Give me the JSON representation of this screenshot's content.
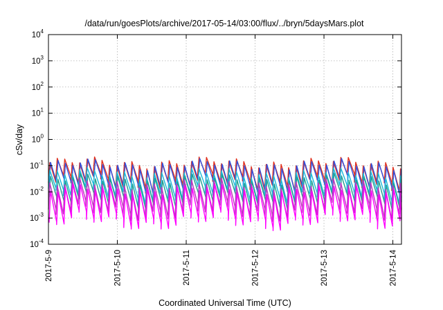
{
  "chart_data": {
    "type": "line",
    "title": "/data/run/goesPlots/archive/2017-05-14/03:00/flux/../bryn/5daysMars.plot",
    "xlabel": "Coordinated Universal Time (UTC)",
    "ylabel": "cSv/day",
    "yscale": "log",
    "ylim": [
      0.0001,
      10000
    ],
    "xlim": [
      "2017-05-09T00:00",
      "2017-05-14T03:00"
    ],
    "grid": true,
    "x_ticks": [
      "2017-5-9",
      "2017-5-10",
      "2017-5-11",
      "2017-5-12",
      "2017-5-13",
      "2017-5-14"
    ],
    "y_ticks": [
      {
        "base": "10",
        "exp": "-4"
      },
      {
        "base": "10",
        "exp": "-3"
      },
      {
        "base": "10",
        "exp": "-2"
      },
      {
        "base": "10",
        "exp": "-1"
      },
      {
        "base": "10",
        "exp": "0"
      },
      {
        "base": "10",
        "exp": "1"
      },
      {
        "base": "10",
        "exp": "2"
      },
      {
        "base": "10",
        "exp": "3"
      },
      {
        "base": "10",
        "exp": "4"
      }
    ],
    "sawtooth_period_hours": 2.6,
    "series": [
      {
        "color": "#e0301e",
        "peak": 0.13,
        "trough": 0.022
      },
      {
        "color": "#3050e0",
        "peak": 0.11,
        "trough": 0.016
      },
      {
        "color": "#18b8d8",
        "peak": 0.05,
        "trough": 0.008
      },
      {
        "color": "#20a090",
        "peak": 0.03,
        "trough": 0.004
      },
      {
        "color": "#c030c0",
        "peak": 0.02,
        "trough": 0.0018
      },
      {
        "color": "#ff00ff",
        "peak": 0.012,
        "trough": 0.0008
      }
    ]
  }
}
